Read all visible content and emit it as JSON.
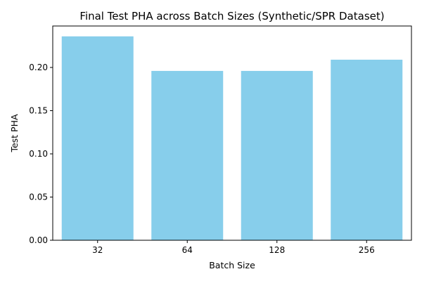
{
  "chart_data": {
    "type": "bar",
    "title": "Final Test PHA across Batch Sizes (Synthetic/SPR Dataset)",
    "xlabel": "Batch Size",
    "ylabel": "Test PHA",
    "categories": [
      "32",
      "64",
      "128",
      "256"
    ],
    "values": [
      0.236,
      0.196,
      0.196,
      0.209
    ],
    "ylim": [
      0,
      0.248
    ],
    "yticks": [
      0.0,
      0.05,
      0.1,
      0.15,
      0.2
    ],
    "ytick_labels": [
      "0.00",
      "0.05",
      "0.10",
      "0.15",
      "0.20"
    ],
    "bar_color": "#87CEEB",
    "grid": false,
    "legend": false
  }
}
